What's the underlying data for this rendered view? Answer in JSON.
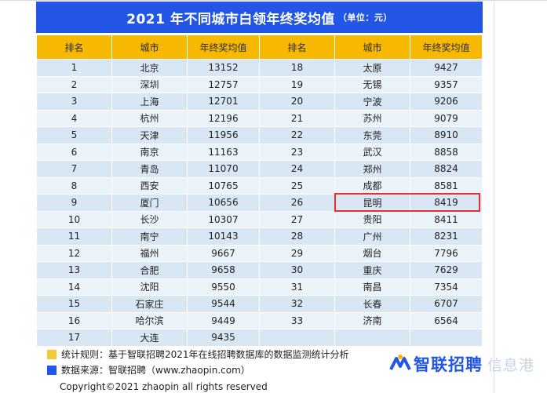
{
  "title": "2021 年不同城市白领年终奖均值",
  "unit": "（单位：元）",
  "headers": [
    "排名",
    "城市",
    "年终奖均值",
    "排名",
    "城市",
    "年终奖均值"
  ],
  "left_rows": [
    {
      "rank": "1",
      "city": "北京",
      "value": "13152"
    },
    {
      "rank": "2",
      "city": "深圳",
      "value": "12757"
    },
    {
      "rank": "3",
      "city": "上海",
      "value": "12701"
    },
    {
      "rank": "4",
      "city": "杭州",
      "value": "12196"
    },
    {
      "rank": "5",
      "city": "天津",
      "value": "11956"
    },
    {
      "rank": "6",
      "city": "南京",
      "value": "11163"
    },
    {
      "rank": "7",
      "city": "青岛",
      "value": "11070"
    },
    {
      "rank": "8",
      "city": "西安",
      "value": "10765"
    },
    {
      "rank": "9",
      "city": "厦门",
      "value": "10656"
    },
    {
      "rank": "10",
      "city": "长沙",
      "value": "10307"
    },
    {
      "rank": "11",
      "city": "南宁",
      "value": "10143"
    },
    {
      "rank": "12",
      "city": "福州",
      "value": "9667"
    },
    {
      "rank": "13",
      "city": "合肥",
      "value": "9658"
    },
    {
      "rank": "14",
      "city": "沈阳",
      "value": "9550"
    },
    {
      "rank": "15",
      "city": "石家庄",
      "value": "9544"
    },
    {
      "rank": "16",
      "city": "哈尔滨",
      "value": "9449"
    },
    {
      "rank": "17",
      "city": "大连",
      "value": "9435"
    }
  ],
  "right_rows": [
    {
      "rank": "18",
      "city": "太原",
      "value": "9427"
    },
    {
      "rank": "19",
      "city": "无锡",
      "value": "9357"
    },
    {
      "rank": "20",
      "city": "宁波",
      "value": "9206"
    },
    {
      "rank": "21",
      "city": "苏州",
      "value": "9079"
    },
    {
      "rank": "22",
      "city": "东莞",
      "value": "8910"
    },
    {
      "rank": "23",
      "city": "武汉",
      "value": "8858"
    },
    {
      "rank": "24",
      "city": "郑州",
      "value": "8824"
    },
    {
      "rank": "25",
      "city": "成都",
      "value": "8581"
    },
    {
      "rank": "26",
      "city": "昆明",
      "value": "8419"
    },
    {
      "rank": "27",
      "city": "贵阳",
      "value": "8411"
    },
    {
      "rank": "28",
      "city": "广州",
      "value": "8231"
    },
    {
      "rank": "29",
      "city": "烟台",
      "value": "7796"
    },
    {
      "rank": "30",
      "city": "重庆",
      "value": "7629"
    },
    {
      "rank": "31",
      "city": "南昌",
      "value": "7354"
    },
    {
      "rank": "32",
      "city": "长春",
      "value": "6707"
    },
    {
      "rank": "33",
      "city": "济南",
      "value": "6564"
    },
    {
      "rank": "",
      "city": "",
      "value": ""
    }
  ],
  "highlighted_rank": "26",
  "notes": {
    "rule": "统计规则：基于智联招聘2021年在线招聘数据库的数据监测统计分析",
    "source": "数据来源：智联招聘（www.zhaopin.com）"
  },
  "copyright": "Copyright©2021 zhaopin all rights reserved",
  "logo": {
    "name": "智联招聘",
    "watermark": "信息港"
  },
  "colors": {
    "title_bg": "#2355e6",
    "header_bg": "#f6b800",
    "row_a": "#d9e7f5",
    "row_b": "#eaf2fa",
    "highlight": "#e53030"
  }
}
